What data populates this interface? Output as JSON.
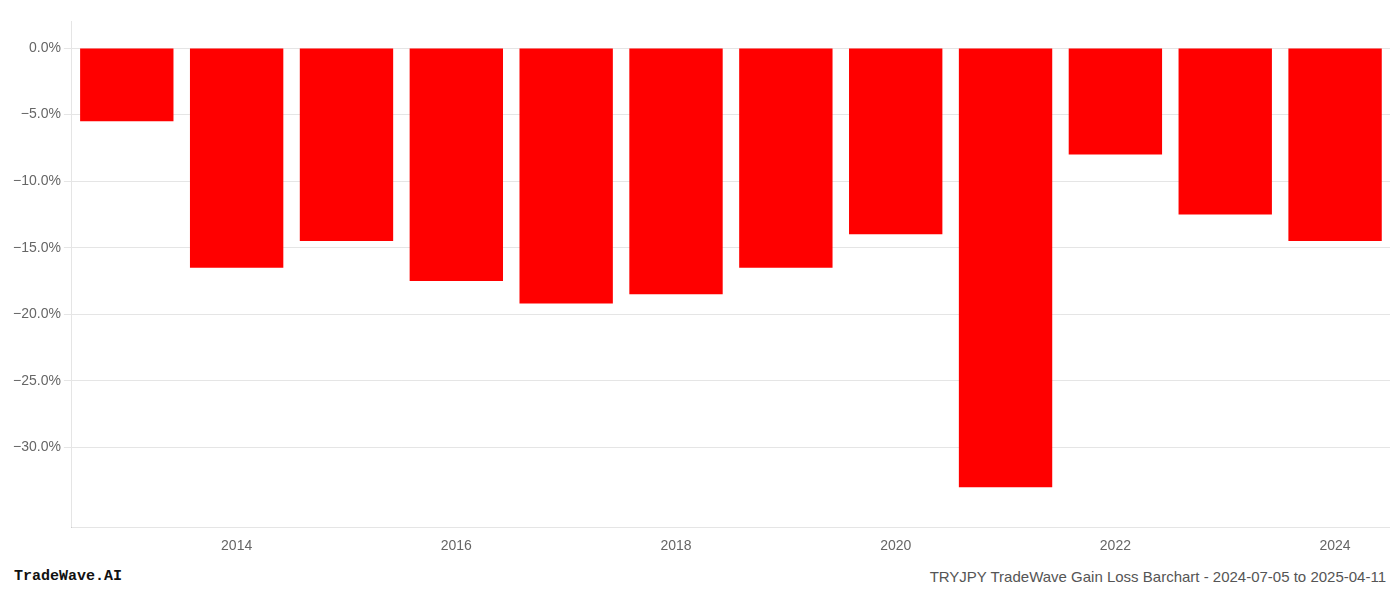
{
  "chart_data": {
    "type": "bar",
    "categories": [
      null,
      "2014",
      null,
      "2016",
      null,
      "2018",
      null,
      "2020",
      null,
      "2022",
      null,
      "2024"
    ],
    "values": [
      -5.5,
      -16.5,
      -14.5,
      -17.5,
      -19.2,
      -18.5,
      -16.5,
      -14.0,
      -33.0,
      -8.0,
      -12.5,
      -14.5
    ],
    "color": "#ff0000",
    "ylim": [
      -36,
      2
    ],
    "yticks": [
      {
        "value": 0,
        "label": "0.0%"
      },
      {
        "value": -5,
        "label": "−5.0%"
      },
      {
        "value": -10,
        "label": "−10.0%"
      },
      {
        "value": -15,
        "label": "−15.0%"
      },
      {
        "value": -20,
        "label": "−20.0%"
      },
      {
        "value": -25,
        "label": "−25.0%"
      },
      {
        "value": -30,
        "label": "−30.0%"
      }
    ],
    "grid": true,
    "annotations": [
      "TradeWave.AI",
      "TRYJPY TradeWave Gain Loss Barchart - 2024-07-05 to 2025-04-11"
    ]
  }
}
